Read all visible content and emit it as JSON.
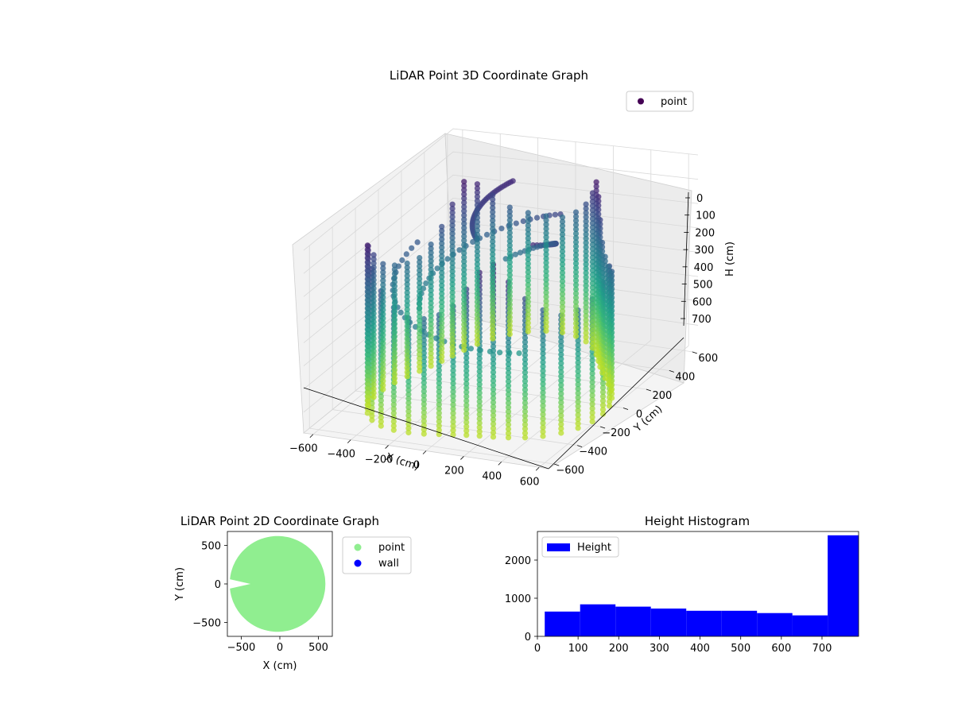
{
  "figure": {
    "background": "#ffffff"
  },
  "chart_data": [
    {
      "type": "scatter",
      "projection": "3d",
      "title": "LiDAR Point 3D Coordinate Graph",
      "xlabel": "X (cm)",
      "ylabel": "Y (cm)",
      "zlabel": "H (cm)",
      "xticks": [
        "−600",
        "−400",
        "−200",
        "0",
        "200",
        "400",
        "600"
      ],
      "yticks": [
        "−600",
        "−400",
        "−200",
        "0",
        "200",
        "400",
        "600"
      ],
      "zticks": [
        "0",
        "100",
        "200",
        "300",
        "400",
        "500",
        "600",
        "700"
      ],
      "xlim": [
        -650,
        650
      ],
      "ylim": [
        -650,
        650
      ],
      "zlim": [
        0,
        790
      ],
      "z_inverted": true,
      "colormap": "viridis",
      "legend": {
        "placement": "top-right",
        "entries": [
          {
            "name": "point",
            "color": "#440154"
          }
        ]
      },
      "series": [
        {
          "name": "point",
          "shape": "ring of vertical scan columns, radius ~620 cm, H 0–790 cm, color by height"
        }
      ]
    },
    {
      "type": "scatter",
      "title": "LiDAR Point 2D Coordinate Graph",
      "xlabel": "X (cm)",
      "ylabel": "Y (cm)",
      "xticks": [
        "−500",
        "0",
        "500"
      ],
      "yticks": [
        "−500",
        "0",
        "500"
      ],
      "xlim": [
        -680,
        680
      ],
      "ylim": [
        -680,
        680
      ],
      "legend": {
        "placement": "outside-right",
        "entries": [
          {
            "name": "point",
            "color": "#90ee90"
          },
          {
            "name": "wall",
            "color": "#0000ff"
          }
        ]
      },
      "series": [
        {
          "name": "point",
          "color": "#90ee90",
          "shape": "filled disc radius ~660 cm with wedge gap toward negative X"
        },
        {
          "name": "wall",
          "color": "#0000ff",
          "values": []
        }
      ]
    },
    {
      "type": "bar",
      "subtype": "histogram",
      "title": "Height Histogram",
      "xticks": [
        "0",
        "100",
        "200",
        "300",
        "400",
        "500",
        "600",
        "700"
      ],
      "yticks": [
        "0",
        "1000",
        "2000"
      ],
      "xlim": [
        0,
        790
      ],
      "ylim": [
        0,
        2750
      ],
      "color": "#0000ff",
      "legend": {
        "placement": "top-left",
        "entries": [
          {
            "name": "Height",
            "color": "#0000ff"
          }
        ]
      },
      "bins": [
        {
          "start": 18,
          "end": 105,
          "count": 650
        },
        {
          "start": 105,
          "end": 192,
          "count": 840
        },
        {
          "start": 192,
          "end": 279,
          "count": 780
        },
        {
          "start": 279,
          "end": 366,
          "count": 730
        },
        {
          "start": 366,
          "end": 453,
          "count": 670
        },
        {
          "start": 453,
          "end": 540,
          "count": 670
        },
        {
          "start": 540,
          "end": 627,
          "count": 610
        },
        {
          "start": 627,
          "end": 714,
          "count": 550
        },
        {
          "start": 714,
          "end": 801,
          "count": 2650
        }
      ]
    }
  ]
}
